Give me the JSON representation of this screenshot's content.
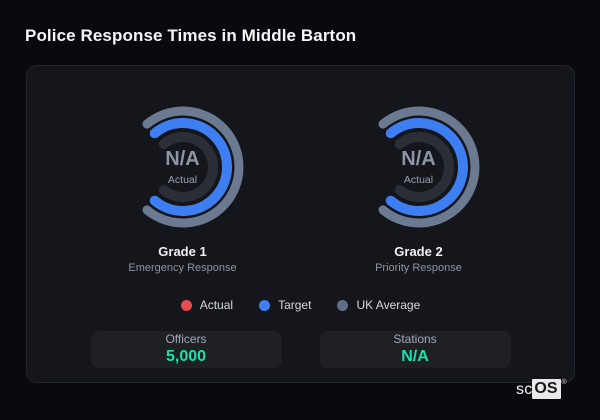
{
  "chart_data": {
    "type": "gauge",
    "title": "Police Response Times in Middle Barton",
    "layout": {
      "gap_side": "left",
      "arc_sweep_deg": 260,
      "legend_position": "bottom-center"
    },
    "gauges": [
      {
        "title": "Grade 1",
        "subtitle": "Emergency Response",
        "center_value": "N/A",
        "center_label": "Actual",
        "rings": [
          {
            "name": "UK Average",
            "color": "#6b7a90",
            "value": "full"
          },
          {
            "name": "Target",
            "color": "#3d7ff2",
            "value": "full"
          },
          {
            "name": "Actual",
            "color": "#2a2e36",
            "value": "N/A (empty track)"
          }
        ]
      },
      {
        "title": "Grade 2",
        "subtitle": "Priority Response",
        "center_value": "N/A",
        "center_label": "Actual",
        "rings": [
          {
            "name": "UK Average",
            "color": "#6b7a90",
            "value": "full"
          },
          {
            "name": "Target",
            "color": "#3d7ff2",
            "value": "full"
          },
          {
            "name": "Actual",
            "color": "#2a2e36",
            "value": "N/A (empty track)"
          }
        ]
      }
    ],
    "legend": [
      {
        "label": "Actual",
        "color": "#e84c4c"
      },
      {
        "label": "Target",
        "color": "#3d7ff2"
      },
      {
        "label": "UK Average",
        "color": "#5f6e86"
      }
    ],
    "stats": [
      {
        "label": "Officers",
        "value": "5,000"
      },
      {
        "label": "Stations",
        "value": "N/A"
      }
    ]
  },
  "logo": {
    "prefix": "sc",
    "box": "OS",
    "registered": "®"
  },
  "colors": {
    "page_background": "#0a0a0e",
    "card_background": "#15161b",
    "card_border": "#25272e",
    "stat_card_background": "#1e2026",
    "accent_teal": "#1ee0a7",
    "accent_blue": "#3d7ff2",
    "accent_red": "#e84c4c",
    "accent_slate": "#6b7a90"
  }
}
